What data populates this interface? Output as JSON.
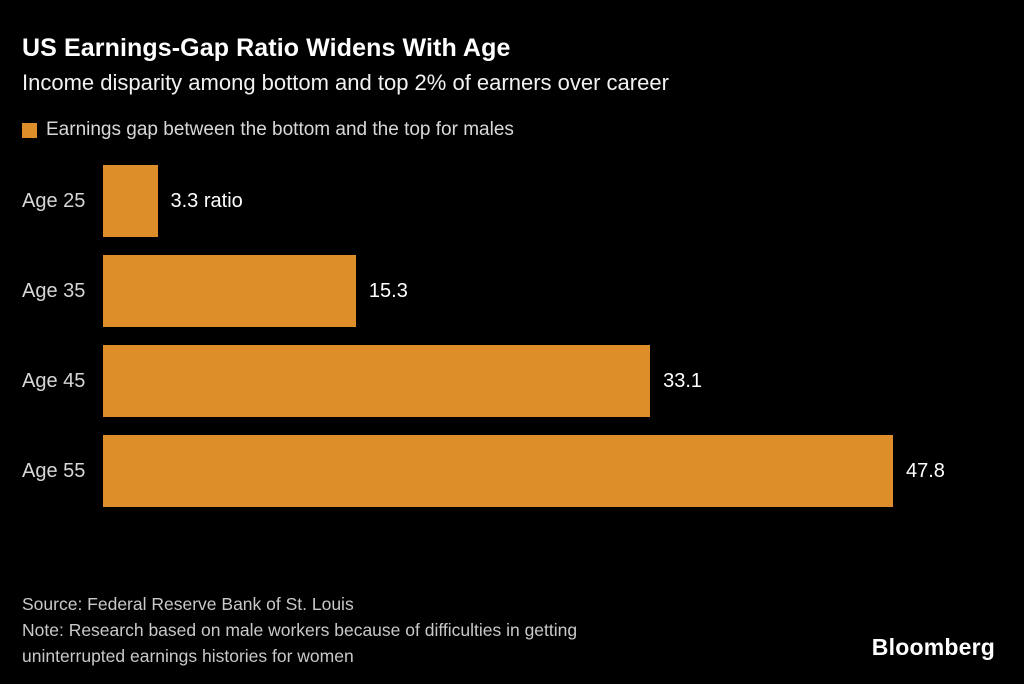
{
  "chart_data": {
    "type": "bar",
    "orientation": "horizontal",
    "title": "US Earnings-Gap Ratio Widens With Age",
    "subtitle": "Income disparity among bottom and top 2% of earners over career",
    "legend": [
      "Earnings gap between the bottom and the top for males"
    ],
    "categories": [
      "Age 25",
      "Age 35",
      "Age 45",
      "Age 55"
    ],
    "values": [
      3.3,
      15.3,
      33.1,
      47.8
    ],
    "value_labels": [
      "3.3 ratio",
      "15.3",
      "33.1",
      "47.8"
    ],
    "xlim": [
      0,
      55
    ],
    "grid": false,
    "bar_color": "#DE8E28",
    "background_color": "#000000",
    "label_color": "#D6D6D6",
    "value_label_color": "#FFFFFF"
  },
  "footer": {
    "source": "Source: Federal Reserve Bank of St. Louis",
    "note_lines": [
      "Note: Research based on male workers because of difficulties in getting",
      "uninterrupted earnings histories for women"
    ],
    "logo": "Bloomberg"
  }
}
